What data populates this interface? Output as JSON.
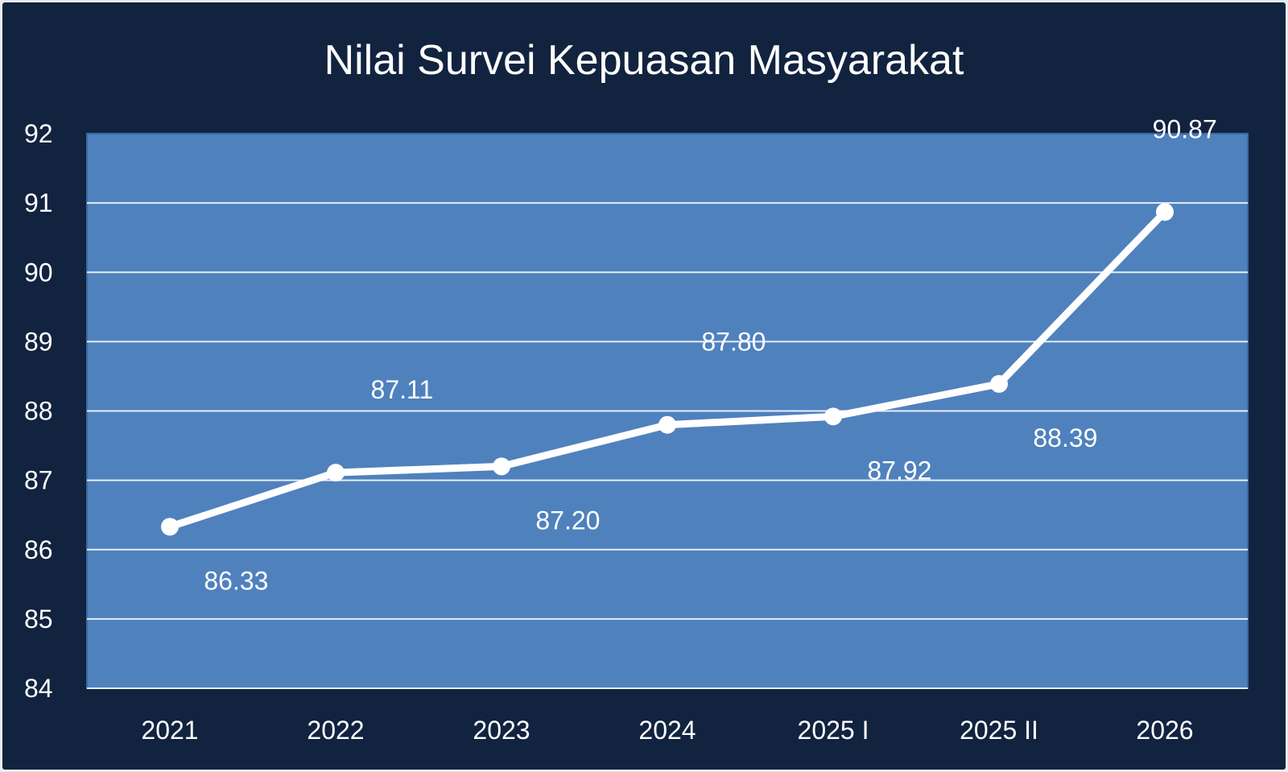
{
  "chart_data": {
    "type": "line",
    "title": "Nilai Survei Kepuasan Masyarakat",
    "xlabel": "",
    "ylabel": "",
    "categories": [
      "2021",
      "2022",
      "2023",
      "2024",
      "2025 I",
      "2025 II",
      "2026"
    ],
    "series": [
      {
        "values": [
          86.33,
          87.11,
          87.2,
          87.8,
          87.92,
          88.39,
          90.87
        ],
        "labels": [
          "86.33",
          "87.11",
          "87.20",
          "87.80",
          "87.92",
          "88.39",
          "90.87"
        ],
        "label_positions": [
          "below",
          "above",
          "below",
          "above",
          "below",
          "below",
          "above"
        ]
      }
    ],
    "ylim": [
      84,
      92
    ],
    "yticks": [
      "84",
      "85",
      "86",
      "87",
      "88",
      "89",
      "90",
      "91",
      "92"
    ],
    "grid": true,
    "legend": "none",
    "colors": {
      "background": "#12233f",
      "plot_area": "#4f81bd",
      "line": "#ffffff",
      "grid": "#e6edf7",
      "text": "#ffffff"
    }
  }
}
